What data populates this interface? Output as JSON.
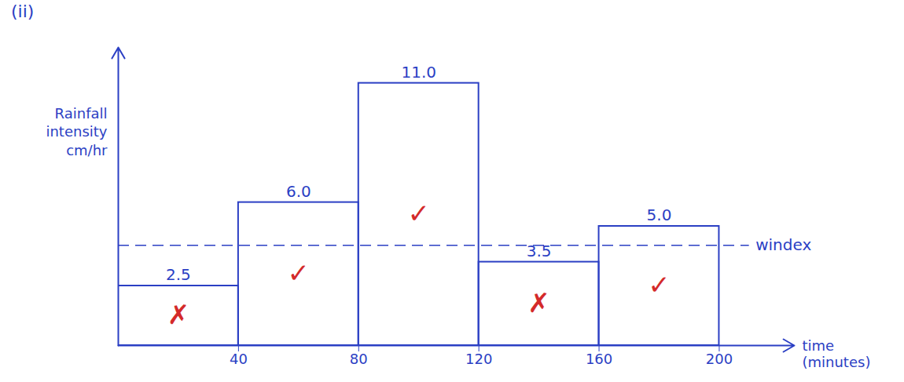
{
  "chart_data": {
    "type": "histogram",
    "panel": "(ii)",
    "bins": [
      0,
      40,
      80,
      120,
      160,
      200
    ],
    "values": [
      2.5,
      6.0,
      11.0,
      3.5,
      5.0
    ],
    "value_labels": [
      "2.5",
      "6.0",
      "11.0",
      "3.5",
      "5.0"
    ],
    "data_labels": true,
    "x_label": "time (minutes)",
    "y_label": "Rainfall intensity cm/hr",
    "xlim": [
      0,
      225
    ],
    "xticks": [
      40,
      80,
      120,
      160,
      200
    ],
    "ylim": [
      0,
      12.5
    ],
    "tick_labels": "x",
    "color": "#2b3fc4",
    "w_index": {
      "value": 4.2,
      "label": "windex"
    },
    "bar_marks": {
      "symbols": [
        "✗",
        "✓",
        "✓",
        "✗",
        "✓"
      ],
      "color": "#d42a2a"
    }
  }
}
